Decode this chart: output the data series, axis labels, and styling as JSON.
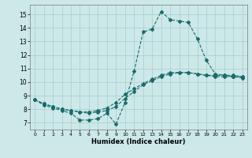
{
  "xlabel": "Humidex (Indice chaleur)",
  "background_color": "#cce8e8",
  "grid_color": "#aacccc",
  "line_color": "#1a6b6b",
  "xlim": [
    -0.5,
    23.5
  ],
  "ylim": [
    6.5,
    15.7
  ],
  "xticks": [
    0,
    1,
    2,
    3,
    4,
    5,
    6,
    7,
    8,
    9,
    10,
    11,
    12,
    13,
    14,
    15,
    16,
    17,
    18,
    19,
    20,
    21,
    22,
    23
  ],
  "yticks": [
    7,
    8,
    9,
    10,
    11,
    12,
    13,
    14,
    15
  ],
  "series": [
    {
      "x": [
        0,
        1,
        2,
        3,
        4,
        5,
        6,
        7,
        8,
        9,
        10,
        11,
        12,
        13,
        14,
        15,
        16,
        17,
        18,
        19,
        20,
        21,
        22,
        23
      ],
      "y": [
        8.7,
        8.3,
        8.1,
        7.9,
        7.7,
        7.2,
        7.2,
        7.3,
        7.7,
        6.9,
        8.5,
        10.8,
        13.7,
        13.9,
        15.2,
        14.6,
        14.5,
        14.4,
        13.2,
        11.6,
        10.6,
        10.5,
        10.4,
        10.4
      ]
    },
    {
      "x": [
        0,
        1,
        2,
        3,
        4,
        5,
        6,
        7,
        8,
        9,
        10,
        11,
        12,
        13,
        14,
        15,
        16,
        17,
        18,
        19,
        20,
        21,
        22,
        23
      ],
      "y": [
        8.7,
        8.4,
        8.2,
        8.0,
        7.9,
        7.8,
        7.8,
        7.9,
        8.1,
        8.5,
        9.1,
        9.5,
        9.9,
        10.2,
        10.5,
        10.7,
        10.7,
        10.7,
        10.6,
        10.5,
        10.5,
        10.5,
        10.5,
        10.4
      ]
    },
    {
      "x": [
        0,
        1,
        2,
        3,
        4,
        5,
        6,
        7,
        8,
        9,
        10,
        11,
        12,
        13,
        14,
        15,
        16,
        17,
        18,
        19,
        20,
        21,
        22,
        23
      ],
      "y": [
        8.7,
        8.4,
        8.2,
        8.0,
        7.9,
        7.8,
        7.7,
        7.8,
        7.9,
        8.2,
        8.8,
        9.3,
        9.8,
        10.1,
        10.4,
        10.6,
        10.7,
        10.7,
        10.6,
        10.5,
        10.4,
        10.4,
        10.4,
        10.3
      ]
    }
  ]
}
